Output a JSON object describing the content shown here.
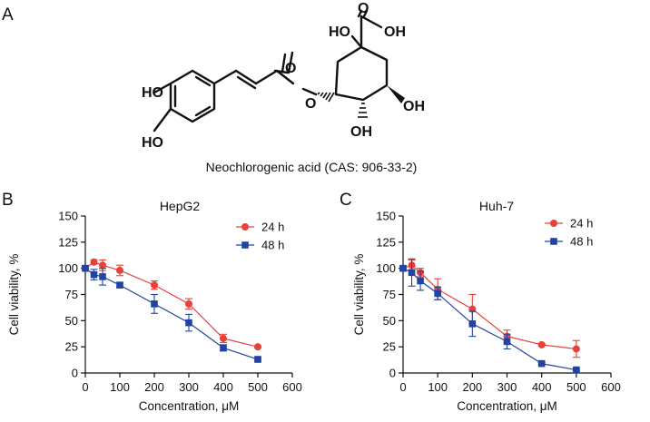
{
  "panels": {
    "a": "A",
    "b": "B",
    "c": "C"
  },
  "molecule": {
    "atoms": [
      "O",
      "HO",
      "OH",
      "HO",
      "O",
      "O",
      "OH",
      "HO",
      "OH"
    ],
    "caption": "Neochlorogenic acid (CAS: 906-33-2)"
  },
  "colors": {
    "series_24h": "#e8413a",
    "series_48h": "#2144a3",
    "axis": "#111111"
  },
  "chart_data": [
    {
      "type": "line",
      "title": "HepG2",
      "xlabel": "Concentration, μM",
      "ylabel": "Cell viability, %",
      "xlim": [
        0,
        600
      ],
      "ylim": [
        0,
        150
      ],
      "xticks": [
        "0",
        "100",
        "200",
        "300",
        "400",
        "500",
        "600"
      ],
      "yticks": [
        "0",
        "25",
        "50",
        "75",
        "100",
        "125",
        "150"
      ],
      "legend": "top-right",
      "series": [
        {
          "name": "24 h",
          "marker": "circle",
          "x": [
            0,
            25,
            50,
            100,
            200,
            300,
            400,
            500
          ],
          "y": [
            100,
            106,
            103,
            98,
            84,
            66,
            33,
            25
          ],
          "err": [
            2,
            2,
            5,
            5,
            4,
            5,
            4,
            1
          ]
        },
        {
          "name": "48 h",
          "marker": "square",
          "x": [
            0,
            25,
            50,
            100,
            200,
            300,
            400,
            500
          ],
          "y": [
            100,
            94,
            92,
            84,
            66,
            48,
            24,
            13
          ],
          "err": [
            2,
            5,
            8,
            2,
            9,
            8,
            3,
            1
          ]
        }
      ]
    },
    {
      "type": "line",
      "title": "Huh-7",
      "xlabel": "Concentration, μM",
      "ylabel": "Cell viability, %",
      "xlim": [
        0,
        600
      ],
      "ylim": [
        0,
        150
      ],
      "xticks": [
        "0",
        "100",
        "200",
        "300",
        "400",
        "500",
        "600"
      ],
      "yticks": [
        "0",
        "25",
        "50",
        "75",
        "100",
        "125",
        "150"
      ],
      "legend": "top-right",
      "series": [
        {
          "name": "24 h",
          "marker": "circle",
          "x": [
            0,
            25,
            50,
            100,
            200,
            300,
            400,
            500
          ],
          "y": [
            100,
            103,
            96,
            80,
            61,
            35,
            27,
            23
          ],
          "err": [
            2,
            5,
            4,
            10,
            14,
            6,
            1,
            8
          ]
        },
        {
          "name": "48 h",
          "marker": "square",
          "x": [
            0,
            25,
            50,
            100,
            200,
            300,
            400,
            500
          ],
          "y": [
            100,
            96,
            88,
            76,
            47,
            30,
            9,
            3
          ],
          "err": [
            2,
            13,
            9,
            6,
            12,
            7,
            1,
            1
          ]
        }
      ]
    }
  ]
}
